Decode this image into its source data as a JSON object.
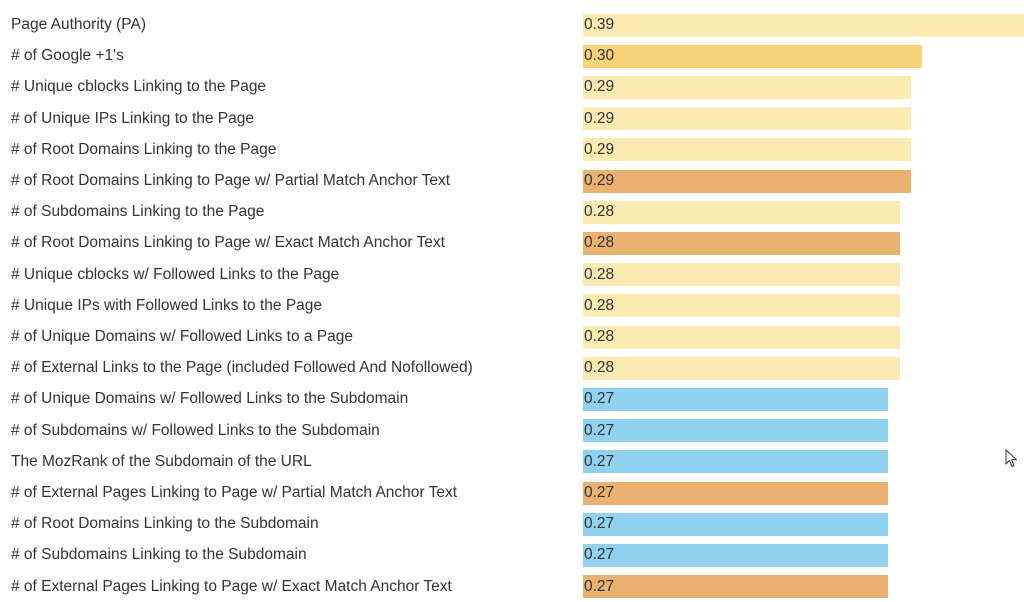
{
  "chart_data": {
    "type": "bar",
    "orientation": "horizontal",
    "categories": [
      "Page Authority (PA)",
      "# of Google +1's",
      "# Unique cblocks Linking to the Page",
      "# of Unique IPs Linking to the Page",
      "# of Root Domains Linking to the Page",
      "# of Root Domains Linking to Page w/ Partial Match Anchor Text",
      "# of Subdomains Linking to the Page",
      "# of Root Domains Linking to Page w/ Exact Match Anchor Text",
      "# Unique cblocks w/ Followed Links to the Page",
      "# Unique IPs with Followed Links to the Page",
      "# of Unique Domains w/ Followed Links to a Page",
      "# of External Links to the Page (included Followed And Nofollowed)",
      "# of Unique Domains w/ Followed Links to the Subdomain",
      "# of Subdomains w/ Followed Links to the Subdomain",
      "The MozRank of the Subdomain of the URL",
      "# of External Pages Linking to Page w/ Partial Match Anchor Text",
      "# of Root Domains Linking to the Subdomain",
      "# of Subdomains Linking to the Subdomain",
      "# of External Pages Linking to Page w/ Exact Match Anchor Text"
    ],
    "values": [
      0.39,
      0.3,
      0.29,
      0.29,
      0.29,
      0.29,
      0.28,
      0.28,
      0.28,
      0.28,
      0.28,
      0.28,
      0.27,
      0.27,
      0.27,
      0.27,
      0.27,
      0.27,
      0.27
    ],
    "value_labels": [
      "0.39",
      "0.30",
      "0.29",
      "0.29",
      "0.29",
      "0.29",
      "0.28",
      "0.28",
      "0.28",
      "0.28",
      "0.28",
      "0.28",
      "0.27",
      "0.27",
      "0.27",
      "0.27",
      "0.27",
      "0.27",
      "0.27"
    ],
    "bar_colors": [
      "#fbeab1",
      "#f9d27a",
      "#fbeab1",
      "#fbeab1",
      "#fbeab1",
      "#e9b271",
      "#fbeab1",
      "#e9b271",
      "#fbeab1",
      "#fbeab1",
      "#fbeab1",
      "#fbeab1",
      "#8fd1ef",
      "#8fd1ef",
      "#8fd1ef",
      "#e9b271",
      "#8fd1ef",
      "#8fd1ef",
      "#e9b271"
    ],
    "xlim": [
      0,
      0.39
    ],
    "title": "",
    "xlabel": "",
    "ylabel": "",
    "grid": false,
    "legend": "none"
  },
  "colors": {
    "text": "#333333",
    "background": "#ffffff"
  },
  "cursor": {
    "icon": "mouse-pointer-icon"
  }
}
